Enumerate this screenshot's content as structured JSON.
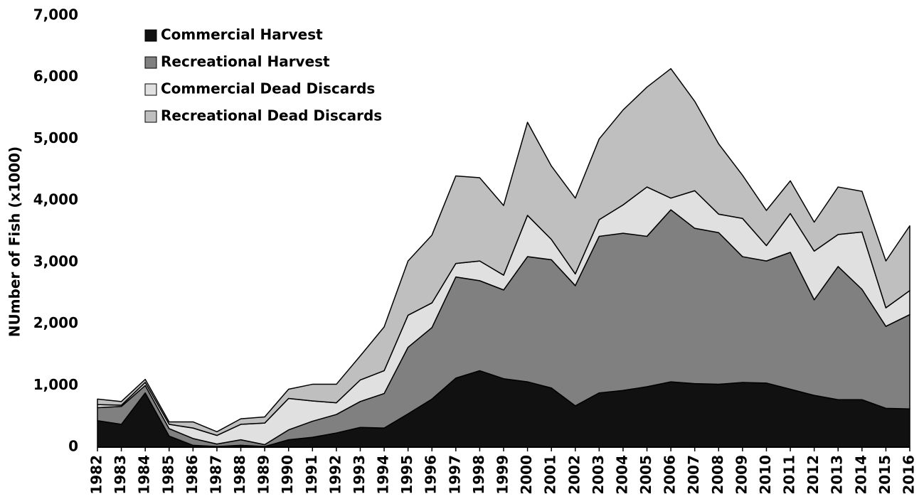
{
  "chart_data": {
    "type": "stacked_area",
    "y_label": "NUmber of Fish (x1000)",
    "categories": [
      "1982",
      "1983",
      "1984",
      "1985",
      "1986",
      "1987",
      "1988",
      "1989",
      "1990",
      "1991",
      "1992",
      "1993",
      "1994",
      "1995",
      "1996",
      "1997",
      "1998",
      "1999",
      "2000",
      "2001",
      "2002",
      "2003",
      "2004",
      "2005",
      "2006",
      "2007",
      "2008",
      "2009",
      "2010",
      "2011",
      "2012",
      "2013",
      "2014",
      "2015",
      "2016"
    ],
    "series": [
      {
        "name": "Commercial Harvest",
        "color": "#111111",
        "values": [
          430,
          370,
          880,
          180,
          30,
          10,
          30,
          10,
          120,
          160,
          230,
          320,
          310,
          540,
          780,
          1120,
          1240,
          1110,
          1060,
          960,
          670,
          880,
          920,
          980,
          1060,
          1030,
          1020,
          1050,
          1040,
          940,
          840,
          770,
          770,
          630,
          620
        ]
      },
      {
        "name": "Recreational Harvest",
        "color": "#808080",
        "values": [
          210,
          290,
          120,
          120,
          110,
          40,
          90,
          30,
          160,
          260,
          300,
          420,
          560,
          1080,
          1160,
          1640,
          1460,
          1440,
          2030,
          2080,
          1950,
          2540,
          2550,
          2440,
          2790,
          2520,
          2460,
          2040,
          1980,
          2220,
          1550,
          2160,
          1790,
          1330,
          1530
        ]
      },
      {
        "name": "Commercial Dead Discards",
        "color": "#e0e0e0",
        "values": [
          50,
          20,
          50,
          70,
          170,
          140,
          250,
          350,
          510,
          330,
          190,
          350,
          370,
          520,
          400,
          220,
          320,
          240,
          670,
          330,
          190,
          270,
          460,
          800,
          190,
          610,
          300,
          620,
          250,
          630,
          790,
          520,
          930,
          300,
          390
        ]
      },
      {
        "name": "Recreational Dead Discards",
        "color": "#bfbfbf",
        "values": [
          90,
          60,
          50,
          40,
          100,
          60,
          90,
          100,
          150,
          270,
          300,
          390,
          710,
          880,
          1100,
          1420,
          1350,
          1130,
          1510,
          1190,
          1230,
          1310,
          1540,
          1620,
          2100,
          1450,
          1140,
          700,
          570,
          530,
          470,
          770,
          660,
          760,
          1050
        ]
      }
    ],
    "ylim": [
      0,
      7000
    ],
    "yticks": [
      0,
      {
        "value": 1000,
        "label": "1,000"
      },
      {
        "value": 2000,
        "label": "2,000"
      },
      {
        "value": 3000,
        "label": "3,000"
      },
      {
        "value": 4000,
        "label": "4,000"
      },
      {
        "value": 5000,
        "label": "5,000"
      },
      {
        "value": 6000,
        "label": "6,000"
      },
      {
        "value": 7000,
        "label": "7,000"
      }
    ],
    "legend": "top-left",
    "grid": false
  }
}
